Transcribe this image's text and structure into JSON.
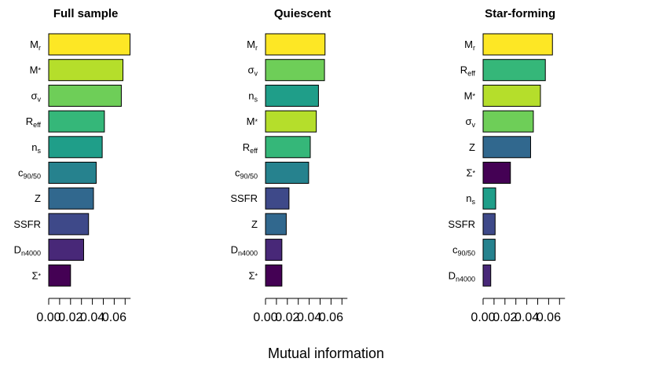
{
  "chart_data": {
    "type": "bar",
    "orientation": "horizontal",
    "xlabel": "Mutual information",
    "xlim": [
      0,
      0.075
    ],
    "xticks": [
      0.0,
      0.02,
      0.04,
      0.06
    ],
    "xtick_labels": [
      "0.00",
      "0.02",
      "0.04",
      "0.06"
    ],
    "panels": [
      {
        "title": "Full sample",
        "bars": [
          {
            "label": "M_r",
            "value": 0.0745,
            "color": "#fde725"
          },
          {
            "label": "M_*",
            "value": 0.068,
            "color": "#b5de2b"
          },
          {
            "label": "σ_v",
            "value": 0.0665,
            "color": "#6ece58"
          },
          {
            "label": "R_eff",
            "value": 0.051,
            "color": "#35b779"
          },
          {
            "label": "n_s",
            "value": 0.049,
            "color": "#1f9e89"
          },
          {
            "label": "c_90/50",
            "value": 0.0435,
            "color": "#26828e"
          },
          {
            "label": "Z",
            "value": 0.041,
            "color": "#31688e"
          },
          {
            "label": "SSFR",
            "value": 0.0365,
            "color": "#3e4989"
          },
          {
            "label": "D_n4000",
            "value": 0.032,
            "color": "#482878"
          },
          {
            "label": "Σ_*",
            "value": 0.02,
            "color": "#440154"
          }
        ]
      },
      {
        "title": "Quiescent",
        "bars": [
          {
            "label": "M_r",
            "value": 0.0545,
            "color": "#fde725"
          },
          {
            "label": "σ_v",
            "value": 0.054,
            "color": "#6ece58"
          },
          {
            "label": "n_s",
            "value": 0.0485,
            "color": "#1f9e89"
          },
          {
            "label": "M_*",
            "value": 0.0465,
            "color": "#b5de2b"
          },
          {
            "label": "R_eff",
            "value": 0.041,
            "color": "#35b779"
          },
          {
            "label": "c_90/50",
            "value": 0.0395,
            "color": "#26828e"
          },
          {
            "label": "SSFR",
            "value": 0.0215,
            "color": "#3e4989"
          },
          {
            "label": "Z",
            "value": 0.019,
            "color": "#31688e"
          },
          {
            "label": "D_n4000",
            "value": 0.015,
            "color": "#482878"
          },
          {
            "label": "Σ_*",
            "value": 0.015,
            "color": "#440154"
          }
        ]
      },
      {
        "title": "Star-forming",
        "bars": [
          {
            "label": "M_r",
            "value": 0.0635,
            "color": "#fde725"
          },
          {
            "label": "R_eff",
            "value": 0.057,
            "color": "#35b779"
          },
          {
            "label": "M_*",
            "value": 0.0525,
            "color": "#b5de2b"
          },
          {
            "label": "σ_v",
            "value": 0.046,
            "color": "#6ece58"
          },
          {
            "label": "Z",
            "value": 0.0435,
            "color": "#31688e"
          },
          {
            "label": "Σ_*",
            "value": 0.025,
            "color": "#440154"
          },
          {
            "label": "n_s",
            "value": 0.0115,
            "color": "#1f9e89"
          },
          {
            "label": "SSFR",
            "value": 0.011,
            "color": "#3e4989"
          },
          {
            "label": "c_90/50",
            "value": 0.011,
            "color": "#26828e"
          },
          {
            "label": "D_n4000",
            "value": 0.007,
            "color": "#482878"
          }
        ]
      }
    ]
  }
}
